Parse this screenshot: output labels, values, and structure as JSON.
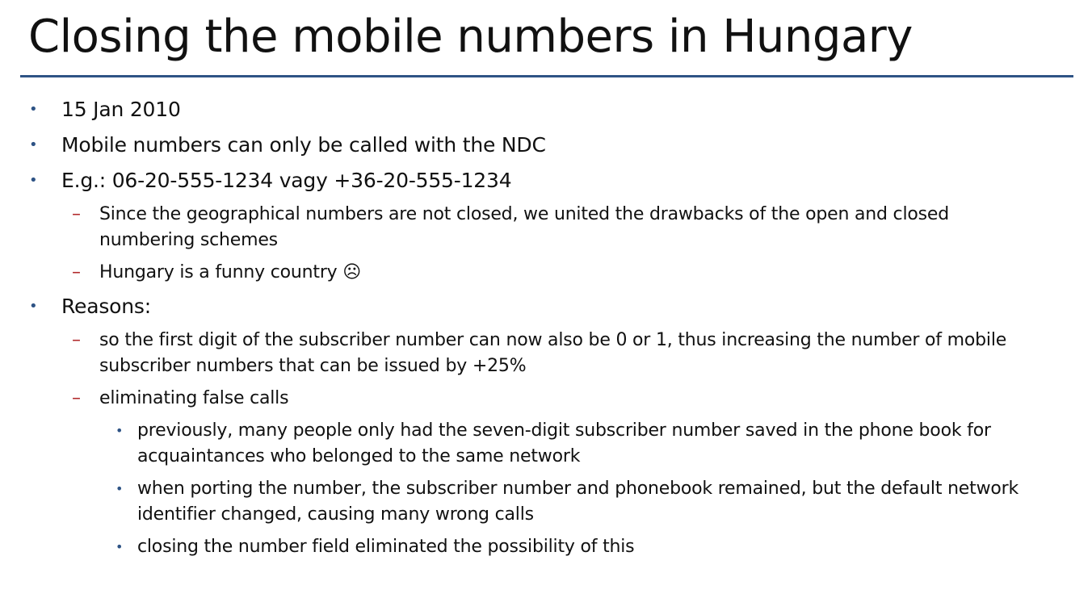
{
  "slide": {
    "title": "Closing the mobile numbers in Hungary",
    "accent_color": "#2e5385",
    "dash_color": "#b0282a",
    "bullets": [
      {
        "text": "15 Jan 2010"
      },
      {
        "text": "Mobile numbers can only be called with the NDC"
      },
      {
        "text": "E.g.: 06-20-555-1234 vagy +36-20-555-1234",
        "sub": [
          {
            "text": "Since the geographical numbers are not closed, we united the drawbacks of the open and closed numbering schemes"
          },
          {
            "text": "Hungary is a funny country ☹"
          }
        ]
      },
      {
        "text": "Reasons:",
        "sub": [
          {
            "text": "so the first digit of the subscriber number can now also be 0 or 1, thus increasing the number of mobile subscriber numbers that can be issued by +25%"
          },
          {
            "text": "eliminating false calls",
            "sub": [
              {
                "text": "previously, many people only had the seven-digit subscriber number saved in the phone book for acquaintances who belonged to the same network"
              },
              {
                "text": "when porting the number, the subscriber number and phonebook remained, but the default network identifier changed, causing many wrong calls"
              },
              {
                "text": "closing the number field eliminated the possibility of this"
              }
            ]
          }
        ]
      }
    ]
  },
  "icons": {
    "level1_bullet": "bullet-dot-icon",
    "level2_bullet": "dash-icon",
    "level3_bullet": "bullet-dot-icon",
    "sad_face": "frowning-face-icon"
  }
}
